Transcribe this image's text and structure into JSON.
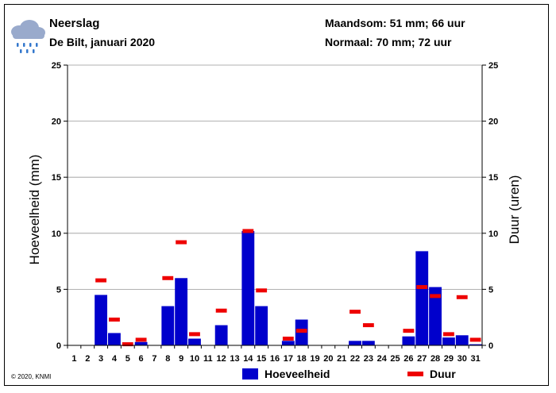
{
  "header": {
    "title": "Neerslag",
    "subtitle": "De Bilt, januari 2020",
    "month_sum": "Maandsom: 51 mm; 66 uur",
    "normal": "Normaal: 70 mm; 72 uur",
    "icon": "rain-cloud-icon"
  },
  "footer": {
    "copyright": "© 2020, KNMI"
  },
  "colors": {
    "bar": "#0000cc",
    "duration": "#ee0000",
    "grid": "#999999",
    "icon_cloud": "#99aacc",
    "icon_drops": "#3377cc"
  },
  "chart_data": {
    "type": "bar",
    "ylabel": "Hoeveelheid (mm)",
    "y2label": "Duur (uren)",
    "ylim": [
      0,
      25
    ],
    "y2lim": [
      0,
      25
    ],
    "yticks": [
      0,
      5,
      10,
      15,
      20,
      25
    ],
    "grid": true,
    "legend_position": "bottom",
    "categories": [
      "1",
      "2",
      "3",
      "4",
      "5",
      "6",
      "7",
      "8",
      "9",
      "10",
      "11",
      "12",
      "13",
      "14",
      "15",
      "16",
      "17",
      "18",
      "19",
      "20",
      "21",
      "22",
      "23",
      "24",
      "25",
      "26",
      "27",
      "28",
      "29",
      "30",
      "31"
    ],
    "series": [
      {
        "name": "Hoeveelheid",
        "kind": "bar",
        "values": [
          0,
          0,
          4.5,
          1.1,
          0,
          0.3,
          0,
          3.5,
          6.0,
          0.6,
          0,
          1.8,
          0,
          10.2,
          3.5,
          0,
          0.4,
          2.3,
          0,
          0,
          0,
          0.4,
          0.4,
          0,
          0,
          0.8,
          8.4,
          5.2,
          0.7,
          0.9,
          0.1
        ]
      },
      {
        "name": "Duur",
        "kind": "marker",
        "values": [
          0,
          0,
          5.8,
          2.3,
          0.1,
          0.5,
          0,
          6.0,
          9.2,
          1.0,
          0,
          3.1,
          0,
          10.2,
          4.9,
          0,
          0.6,
          1.3,
          0,
          0,
          0,
          3.0,
          1.8,
          0,
          0,
          1.3,
          5.2,
          4.4,
          1.0,
          4.3,
          0.5
        ]
      }
    ]
  }
}
